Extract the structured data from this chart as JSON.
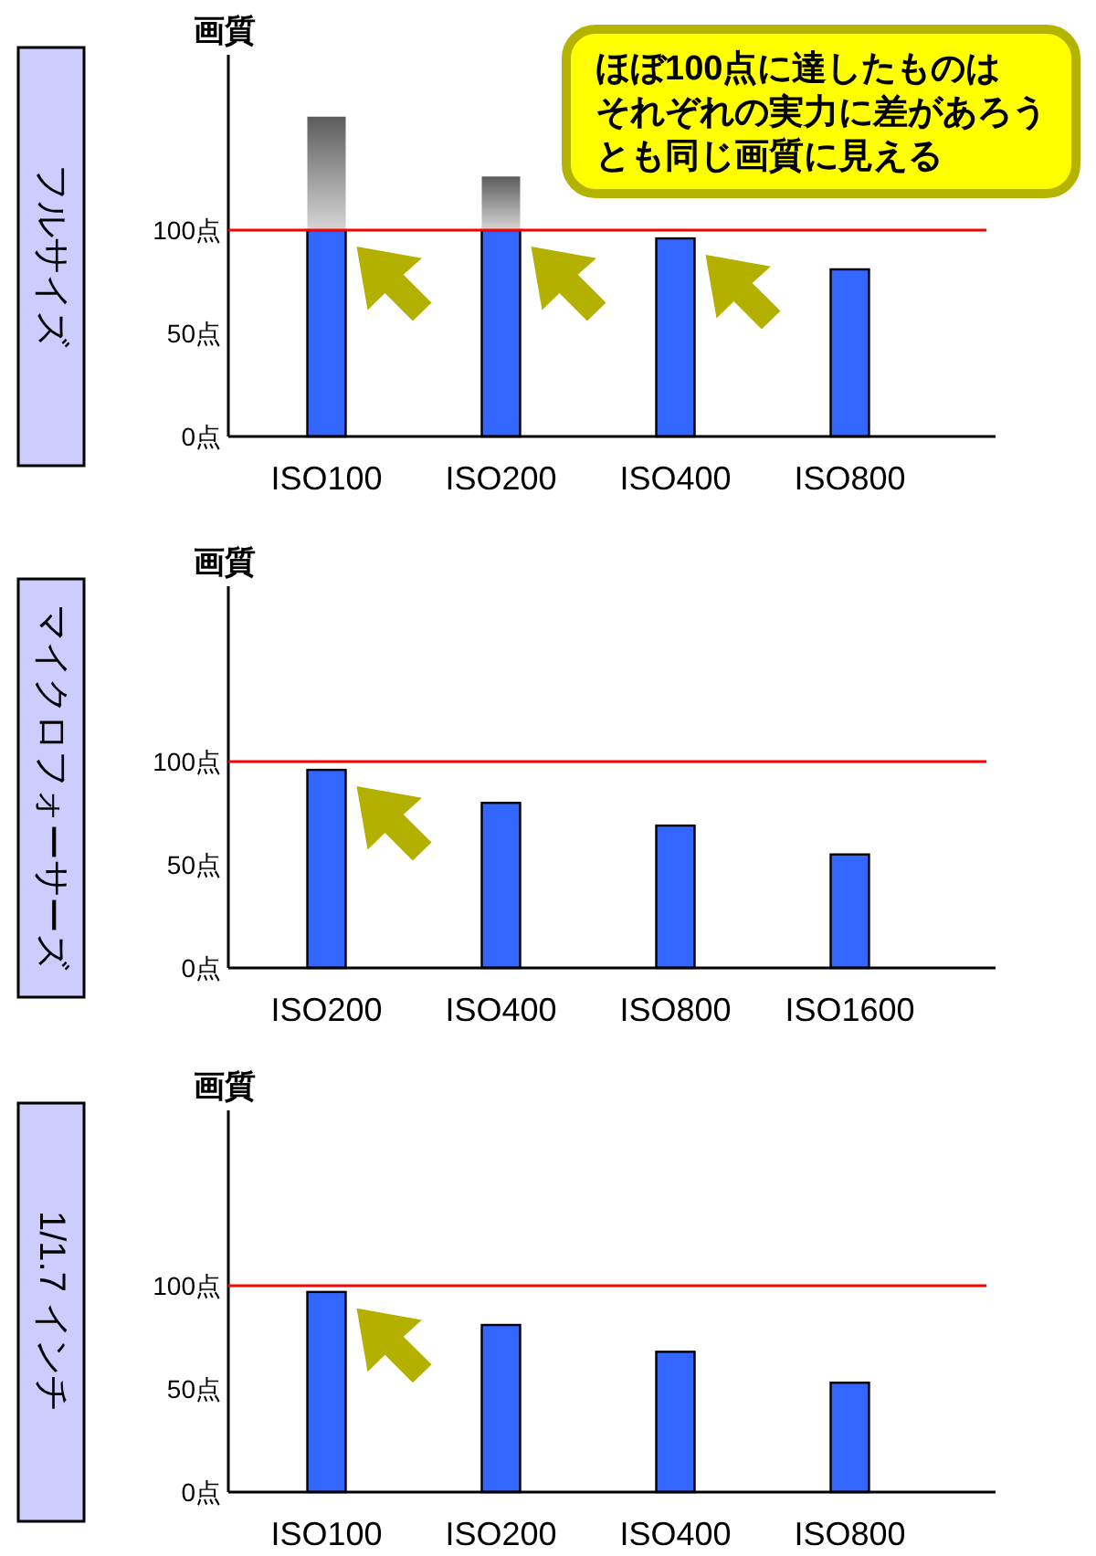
{
  "chart_data": [
    {
      "type": "bar",
      "title": "フルサイズ",
      "ylabel": "画質",
      "categories": [
        "ISO100",
        "ISO200",
        "ISO400",
        "ISO800"
      ],
      "stacked": true,
      "series": [
        {
          "color": "#3366ff",
          "values": [
            100,
            100,
            96,
            81
          ]
        },
        {
          "color": "#999999",
          "values": [
            55,
            26,
            null,
            null
          ]
        }
      ],
      "ylim": [
        0,
        185
      ],
      "yticks": [
        {
          "value": 0,
          "label": "0点"
        },
        {
          "value": 50,
          "label": "50点"
        },
        {
          "value": 100,
          "label": "100点"
        }
      ],
      "ref_lines": [
        {
          "axis": "y",
          "value": 100,
          "color": "#ff0000"
        }
      ],
      "annotations": [
        "ほぼ100点に達したものは",
        "それぞれの実力に差があろう",
        "とも同じ画質に見える",
        {
          "x": "ISO100"
        },
        {
          "x": "ISO200"
        },
        {
          "x": "ISO400"
        }
      ]
    },
    {
      "type": "bar",
      "title": "マイクロフォーサーズ",
      "ylabel": "画質",
      "categories": [
        "ISO200",
        "ISO400",
        "ISO800",
        "ISO1600"
      ],
      "values": [
        96,
        80,
        69,
        55
      ],
      "color": "#3366ff",
      "ylim": [
        0,
        185
      ],
      "yticks": [
        {
          "value": 0,
          "label": "0点"
        },
        {
          "value": 50,
          "label": "50点"
        },
        {
          "value": 100,
          "label": "100点"
        }
      ],
      "ref_lines": [
        {
          "axis": "y",
          "value": 100,
          "color": "#ff0000"
        }
      ],
      "annotations": [
        {
          "x": "ISO200"
        }
      ]
    },
    {
      "type": "bar",
      "title": "1/1.7 インチ",
      "ylabel": "画質",
      "categories": [
        "ISO100",
        "ISO200",
        "ISO400",
        "ISO800"
      ],
      "values": [
        97,
        81,
        68,
        53
      ],
      "color": "#3366ff",
      "ylim": [
        0,
        185
      ],
      "yticks": [
        {
          "value": 0,
          "label": "0点"
        },
        {
          "value": 50,
          "label": "50点"
        },
        {
          "value": 100,
          "label": "100点"
        }
      ],
      "ref_lines": [
        {
          "axis": "y",
          "value": 100,
          "color": "#ff0000"
        }
      ],
      "annotations": [
        {
          "x": "ISO100"
        }
      ]
    }
  ]
}
